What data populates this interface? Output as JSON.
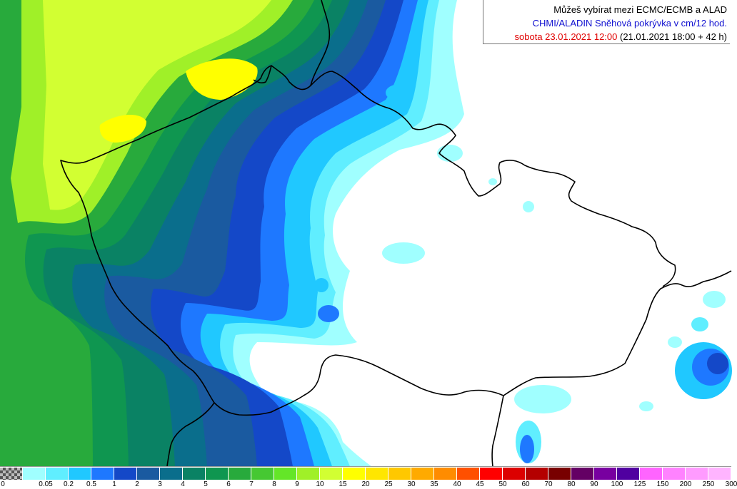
{
  "header": {
    "title": "Můžeš vybírat mezi ECMC/ECMB a ALAD",
    "model_line": "CHMI/ALADIN Sněhová pokrývka v cm/12 hod.",
    "date": "sobota 23.01.2021 12:00",
    "run": " (21.01.2021 18:00 + 42 h)"
  },
  "legend": {
    "labels": [
      "0",
      "0.05",
      "0.2",
      "0.5",
      "1",
      "2",
      "3",
      "4",
      "5",
      "6",
      "7",
      "8",
      "9",
      "10",
      "15",
      "20",
      "25",
      "30",
      "35",
      "40",
      "45",
      "50",
      "60",
      "70",
      "80",
      "90",
      "100",
      "125",
      "150",
      "200",
      "250",
      "300"
    ],
    "colors": [
      "#a0ffff",
      "#60eeff",
      "#20c8ff",
      "#1e78ff",
      "#1448c8",
      "#1a5aa0",
      "#0a6e8c",
      "#0a8264",
      "#0f9650",
      "#28aa3c",
      "#46c832",
      "#64e628",
      "#a0f028",
      "#d2ff32",
      "#ffff00",
      "#ffe600",
      "#ffc800",
      "#ffaa00",
      "#ff8c00",
      "#ff5000",
      "#ff0000",
      "#dc0000",
      "#b40000",
      "#780000",
      "#640064",
      "#7800a0",
      "#5000a0",
      "#ff64ff",
      "#ff82ff",
      "#ff9bff",
      "#ffb4ff"
    ]
  },
  "colors": {
    "white": "#ffffff",
    "lightcyan": "#a0ffff",
    "cyan": "#60eeff",
    "skyblue": "#20c8ff",
    "blue": "#1e78ff",
    "darkblue": "#1448c8",
    "steelblue": "#1a5aa0",
    "teal": "#0a6e8c",
    "seagreen": "#0a8264",
    "green": "#0f9650",
    "midgreen": "#28aa3c",
    "lightgreen": "#64e628",
    "lime": "#a0f028",
    "yellowgreen": "#d2ff32",
    "yellow": "#ffff00",
    "border": "#000000"
  }
}
